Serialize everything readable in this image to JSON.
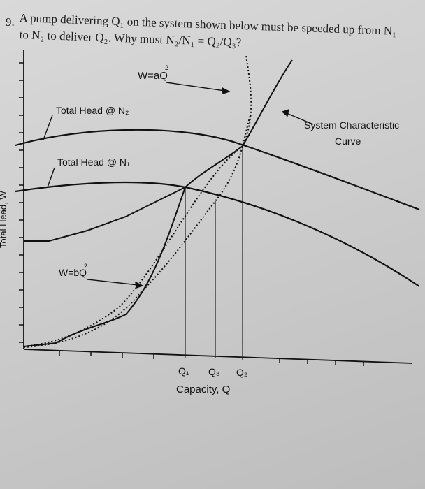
{
  "problem": {
    "number": "9.",
    "line1": "A pump delivering Q₁ on the system shown below must be speeded up from N₁",
    "line2": "to N₂ to deliver Q₂. Why must N₂/N₁ = Q₂/Q₃?"
  },
  "figure": {
    "curve_labels": {
      "wa": "W=aQ",
      "wa_sup": "2",
      "wb": "W=bQ",
      "wb_sup": "2",
      "head_n2": "Total Head @ N₂",
      "head_n1": "Total Head @ N₁",
      "system_line1": "System Characteristic",
      "system_line2": "Curve"
    },
    "axis": {
      "y_label": "Total Head, W",
      "x_label": "Capacity, Q"
    },
    "ticks": {
      "q1": "Q₁",
      "q3": "Q₃",
      "q2": "Q₂"
    }
  }
}
